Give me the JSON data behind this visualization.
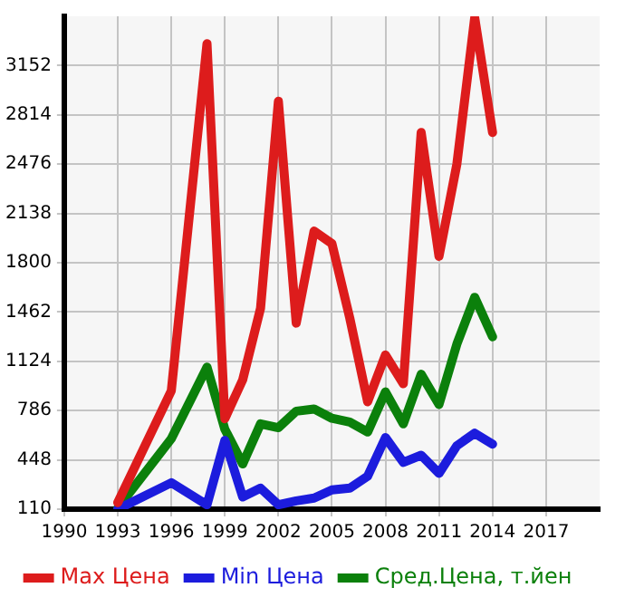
{
  "chart_data": {
    "type": "line",
    "x": [
      1993,
      1996,
      1998,
      1999,
      2000,
      2001,
      2002,
      2003,
      2004,
      2005,
      2006,
      2007,
      2008,
      2009,
      2010,
      2011,
      2012,
      2013,
      2014
    ],
    "series": [
      {
        "name": "Max Цена",
        "color": "#dd1c1c",
        "values": [
          155,
          922,
          3302,
          730,
          997,
          1488,
          2907,
          1386,
          2017,
          1931,
          1420,
          846,
          1167,
          970,
          2693,
          1844,
          2476,
          3480,
          2693
        ]
      },
      {
        "name": "Min Цена",
        "color": "#1c1cdd",
        "values": [
          110,
          291,
          140,
          582,
          194,
          254,
          140,
          167,
          186,
          242,
          254,
          336,
          601,
          431,
          480,
          356,
          545,
          631,
          556
        ]
      },
      {
        "name": "Сред.Цена, т.йен",
        "color": "#0b800b",
        "values": [
          118,
          593,
          1084,
          658,
          420,
          695,
          669,
          782,
          797,
          733,
          707,
          639,
          914,
          695,
          1035,
          828,
          1242,
          1563,
          1292
        ]
      }
    ],
    "xlim": [
      1990,
      2020
    ],
    "xticks": [
      1990,
      1993,
      1996,
      1999,
      2002,
      2005,
      2008,
      2011,
      2014,
      2017
    ],
    "ylim": [
      110,
      3490
    ],
    "yticks": [
      110,
      448,
      786,
      1124,
      1462,
      1800,
      2138,
      2476,
      2814,
      3152
    ],
    "grid": true,
    "legend": "bottom",
    "marker": "none",
    "line_style": "solid"
  }
}
